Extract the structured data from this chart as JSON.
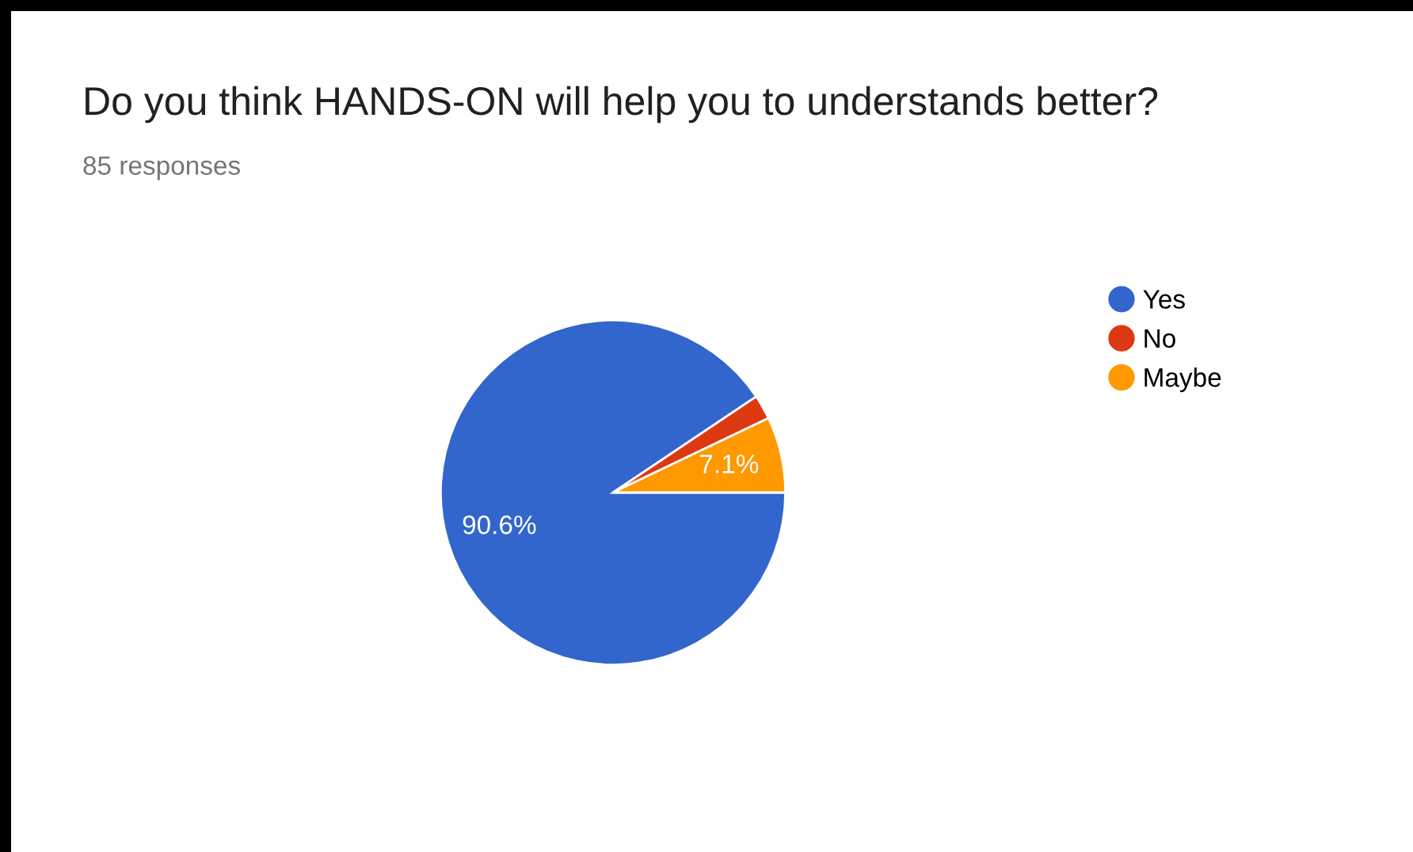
{
  "chart_data": {
    "type": "pie",
    "title": "Do you think HANDS-ON will help you to understands better?",
    "subtitle": "85 responses",
    "categories": [
      "Yes",
      "No",
      "Maybe"
    ],
    "values": [
      90.6,
      2.3,
      7.1
    ],
    "colors": [
      "#3366cc",
      "#dc3912",
      "#ff9900"
    ],
    "value_labels": [
      "90.6%",
      null,
      "7.1%"
    ],
    "legend": "top right"
  }
}
